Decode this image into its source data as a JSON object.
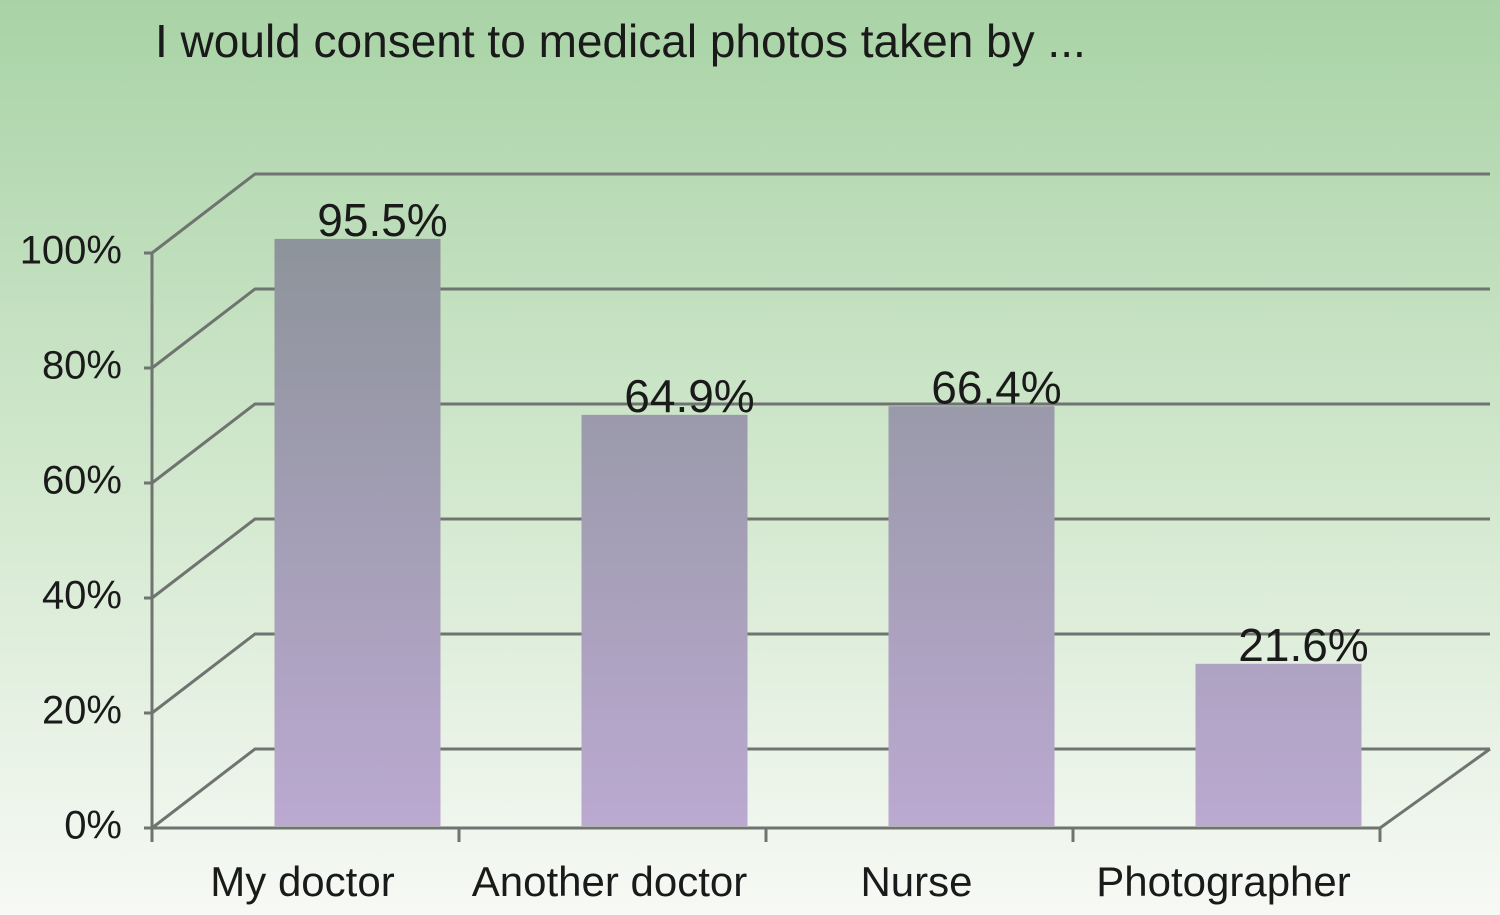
{
  "chart_data": {
    "type": "bar",
    "title": "I would consent to medical photos taken by ...",
    "categories": [
      "My doctor",
      "Another doctor",
      "Nurse",
      "Photographer"
    ],
    "values": [
      95.5,
      64.9,
      66.4,
      21.6
    ],
    "value_labels": [
      "95.5%",
      "64.9%",
      "66.4%",
      "21.6%"
    ],
    "ylim": [
      0,
      100
    ],
    "yticks": [
      {
        "value": 0,
        "label": "0%"
      },
      {
        "value": 20,
        "label": "20%"
      },
      {
        "value": 40,
        "label": "40%"
      },
      {
        "value": 60,
        "label": "60%"
      },
      {
        "value": 80,
        "label": "80%"
      },
      {
        "value": 100,
        "label": "100%"
      }
    ],
    "grid": true
  }
}
